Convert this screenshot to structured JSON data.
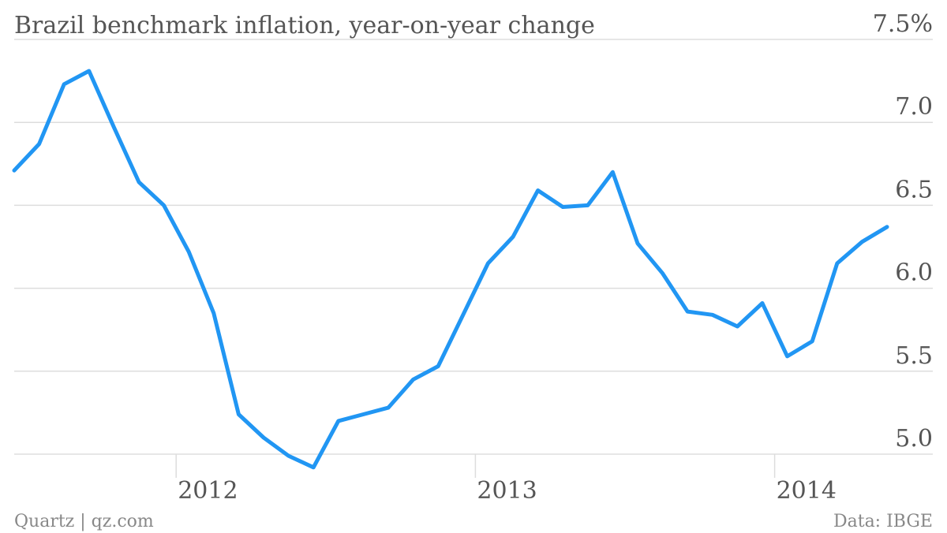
{
  "header": {
    "title": "Brazil benchmark inflation, year-on-year change"
  },
  "footer": {
    "source_left": "Quartz | qz.com",
    "source_right": "Data: IBGE"
  },
  "colors": {
    "line": "#2196F3",
    "grid": "#dddddd",
    "text": "#555555"
  },
  "chart_data": {
    "type": "line",
    "title": "Brazil benchmark inflation, year-on-year change",
    "xlabel": "",
    "ylabel": "",
    "ylim": [
      4.9,
      7.5
    ],
    "yticks": [
      "5.0",
      "5.5",
      "6.0",
      "6.5",
      "7.0",
      "7.5%"
    ],
    "ytick_values": [
      5.0,
      5.5,
      6.0,
      6.5,
      7.0,
      7.5
    ],
    "xticks": [
      "2012",
      "2013",
      "2014"
    ],
    "xtick_values": [
      "2012-01",
      "2013-01",
      "2014-01"
    ],
    "grid": true,
    "x": [
      "2011-06",
      "2011-07",
      "2011-08",
      "2011-09",
      "2011-10",
      "2011-11",
      "2011-12",
      "2012-01",
      "2012-02",
      "2012-03",
      "2012-04",
      "2012-05",
      "2012-06",
      "2012-07",
      "2012-08",
      "2012-09",
      "2012-10",
      "2012-11",
      "2012-12",
      "2013-01",
      "2013-02",
      "2013-03",
      "2013-04",
      "2013-05",
      "2013-06",
      "2013-07",
      "2013-08",
      "2013-09",
      "2013-10",
      "2013-11",
      "2013-12",
      "2014-01",
      "2014-02",
      "2014-03",
      "2014-04",
      "2014-05"
    ],
    "series": [
      {
        "values": [
          6.71,
          6.87,
          7.23,
          7.31,
          6.97,
          6.64,
          6.5,
          6.22,
          5.85,
          5.24,
          5.1,
          4.99,
          4.92,
          5.2,
          5.24,
          5.28,
          5.45,
          5.53,
          5.84,
          6.15,
          6.31,
          6.59,
          6.49,
          6.5,
          6.7,
          6.27,
          6.09,
          5.86,
          5.84,
          5.77,
          5.91,
          5.59,
          5.68,
          6.15,
          6.28,
          6.37
        ]
      }
    ]
  }
}
